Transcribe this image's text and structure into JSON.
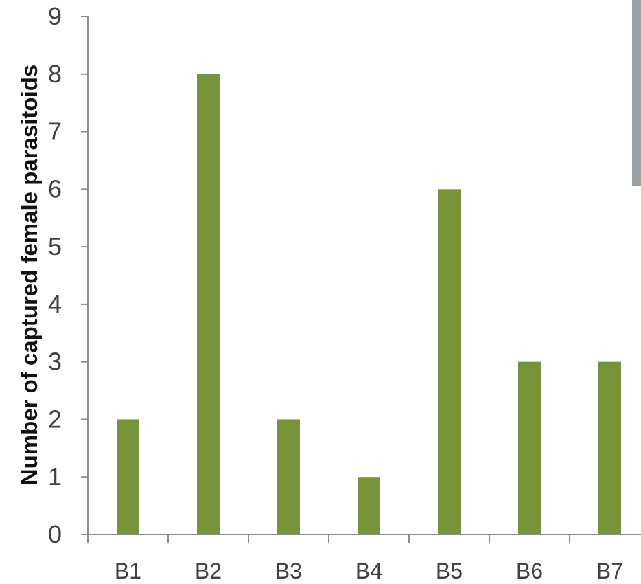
{
  "chart_data": {
    "type": "bar",
    "categories": [
      "B1",
      "B2",
      "B3",
      "B4",
      "B5",
      "B6",
      "B7"
    ],
    "values": [
      2,
      8,
      2,
      1,
      6,
      3,
      3
    ],
    "title": "",
    "xlabel": "",
    "ylabel": "Number of captured female parasitoids",
    "ylim": [
      0,
      9
    ],
    "yticks": [
      0,
      1,
      2,
      3,
      4,
      5,
      6,
      7,
      8,
      9
    ],
    "bar_color": "#77933c",
    "grid": false,
    "legend": "none"
  }
}
